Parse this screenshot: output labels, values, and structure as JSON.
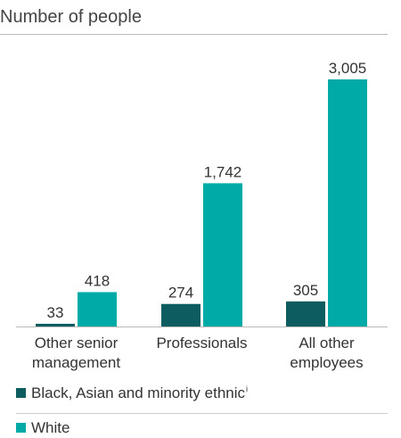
{
  "chart_data": {
    "type": "bar",
    "subtitle": "Number of people",
    "categories": [
      "Other senior\nmanagement",
      "Professionals",
      "All other\nemployees"
    ],
    "series": [
      {
        "name": "Black, Asian and minority ethnic",
        "footnote_marker": "i",
        "color": "#0d5c60",
        "values": [
          33,
          274,
          305
        ]
      },
      {
        "name": "White",
        "color": "#00aaa6",
        "values": [
          418,
          1742,
          3005
        ]
      }
    ],
    "value_labels": [
      [
        "33",
        "274",
        "305"
      ],
      [
        "418",
        "1,742",
        "3,005"
      ]
    ]
  }
}
